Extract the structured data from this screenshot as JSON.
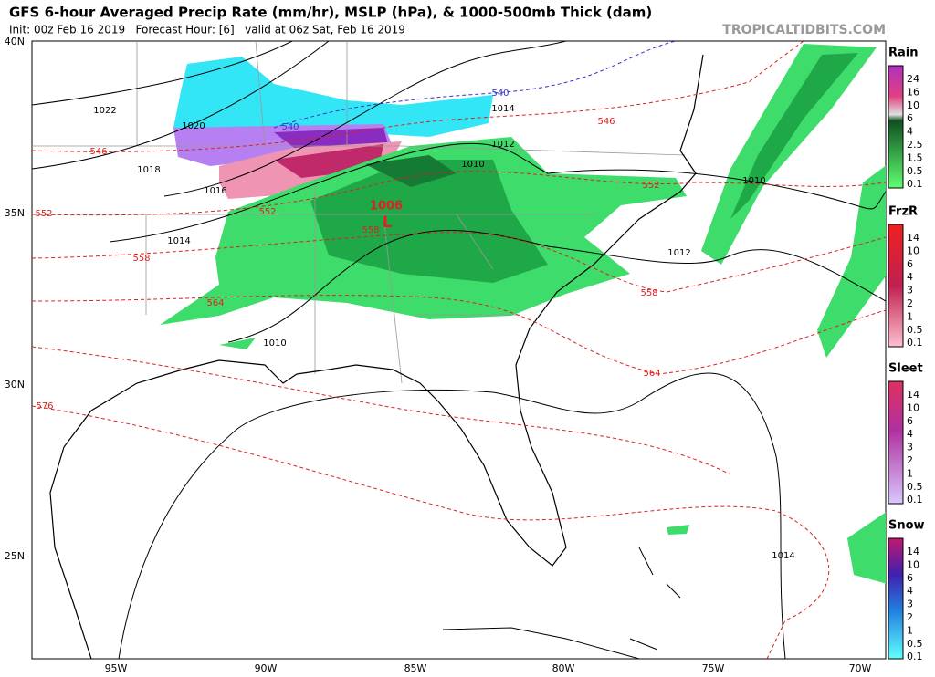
{
  "header": {
    "title": "GFS 6-hour Averaged Precip Rate (mm/hr), MSLP (hPa), & 1000-500mb Thick (dam)",
    "subtitle": "Init: 00z Feb 16 2019   Forecast Hour: [6]   valid at 06z Sat, Feb 16 2019",
    "source": "TROPICALTIDBITS.COM"
  },
  "map": {
    "lat_labels": [
      "40N",
      "35N",
      "30N",
      "25N"
    ],
    "lon_labels": [
      "95W",
      "90W",
      "85W",
      "80W",
      "75W",
      "70W"
    ],
    "isobar_labels": [
      "1022",
      "1020",
      "1018",
      "1016",
      "1014",
      "1014",
      "1012",
      "1010",
      "1010",
      "1012",
      "1014",
      "1010"
    ],
    "low": {
      "pressure": "1006",
      "symbol": "L"
    },
    "thickness_labels": [
      "540",
      "540",
      "546",
      "546",
      "552",
      "552",
      "552",
      "558",
      "558",
      "558",
      "564",
      "564",
      "576"
    ]
  },
  "legend": [
    {
      "title": "Rain",
      "ticks": [
        24,
        16,
        10,
        6,
        4,
        2.5,
        1.5,
        0.5,
        0.1
      ]
    },
    {
      "title": "FrzR",
      "ticks": [
        14,
        10,
        6,
        4,
        3,
        2,
        1,
        0.5,
        0.1
      ]
    },
    {
      "title": "Sleet",
      "ticks": [
        14,
        10,
        6,
        4,
        3,
        2,
        1,
        0.5,
        0.1
      ]
    },
    {
      "title": "Snow",
      "ticks": [
        14,
        10,
        6,
        4,
        3,
        2,
        1,
        0.5,
        0.1
      ]
    }
  ]
}
